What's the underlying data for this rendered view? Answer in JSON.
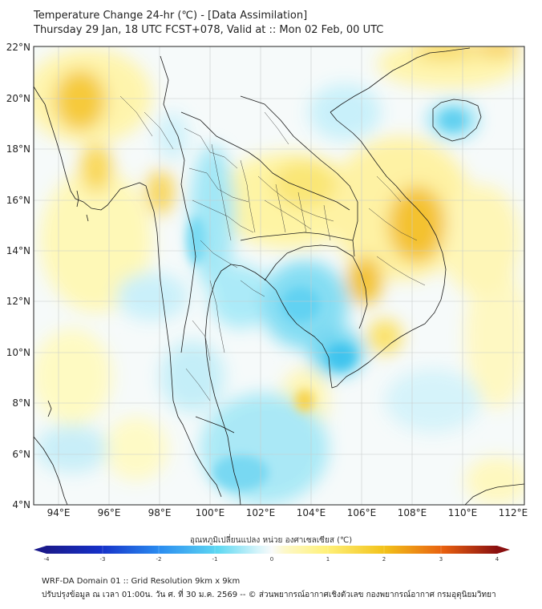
{
  "header": {
    "title_line1": "Temperature Change 24-hr (℃) - [Data Assimilation]",
    "title_line2": "Thursday 29 Jan, 18 UTC FCST+078, Valid at :: Mon 02 Feb, 00 UTC"
  },
  "map": {
    "lat_labels": [
      "22°N",
      "20°N",
      "18°N",
      "16°N",
      "14°N",
      "12°N",
      "10°N",
      "8°N",
      "6°N",
      "4°N"
    ],
    "lon_labels": [
      "94°E",
      "96°E",
      "98°E",
      "100°E",
      "102°E",
      "104°E",
      "106°E",
      "108°E",
      "110°E",
      "112°E"
    ],
    "lat_range": [
      4,
      22
    ],
    "lon_range": [
      93,
      112.5
    ]
  },
  "colorbar": {
    "title": "อุณหภูมิเปลี่ยนแปลง หน่วย องศาเซลเซียส (℃)",
    "ticks": [
      "-4",
      "-3",
      "-2",
      "-1",
      "0",
      "1",
      "2",
      "3",
      "4"
    ],
    "range": [
      -4,
      4
    ],
    "colors": {
      "cold_dark": "#1a1a8c",
      "cold": "#2060e0",
      "cool": "#5ed8f2",
      "neutral": "#f4f9fb",
      "warm_light": "#fff7a0",
      "warm": "#f2c21a",
      "hot": "#e86010",
      "hot_dark": "#8a1010"
    }
  },
  "footer": {
    "line1": "WRF-DA Domain 01 :: Grid Resolution 9km x 9km",
    "line2": "ปรับปรุงข้อมูล ณ เวลา 01:00น. วัน ศ. ที่ 30 ม.ค. 2569 -- © ส่วนพยากรณ์อากาศเชิงตัวเลข กองพยากรณ์อากาศ กรมอุตุนิยมวิทยา"
  }
}
